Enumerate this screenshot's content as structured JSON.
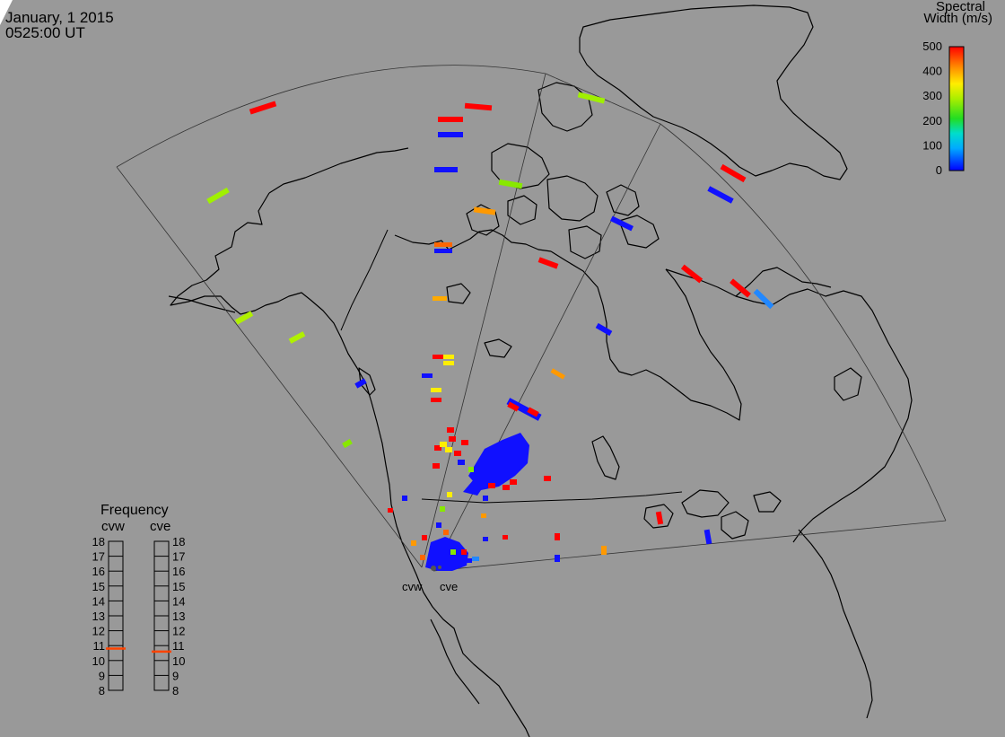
{
  "header": {
    "date": "January, 1 2015",
    "time": "0525:00 UT"
  },
  "colorbar": {
    "title_line1": "Spectral",
    "title_line2": "Width (m/s)",
    "ticks": [
      0,
      100,
      200,
      300,
      400,
      500
    ],
    "range": [
      0,
      500
    ]
  },
  "frequency_panel": {
    "title": "Frequency",
    "radars": [
      {
        "name": "cvw",
        "value": 10.8
      },
      {
        "name": "cve",
        "value": 10.6
      }
    ],
    "scale": [
      8,
      9,
      10,
      11,
      12,
      13,
      14,
      15,
      16,
      17,
      18
    ]
  },
  "map_labels": [
    {
      "id": "cvw",
      "text": "cvw"
    },
    {
      "id": "cve",
      "text": "cve"
    }
  ]
}
